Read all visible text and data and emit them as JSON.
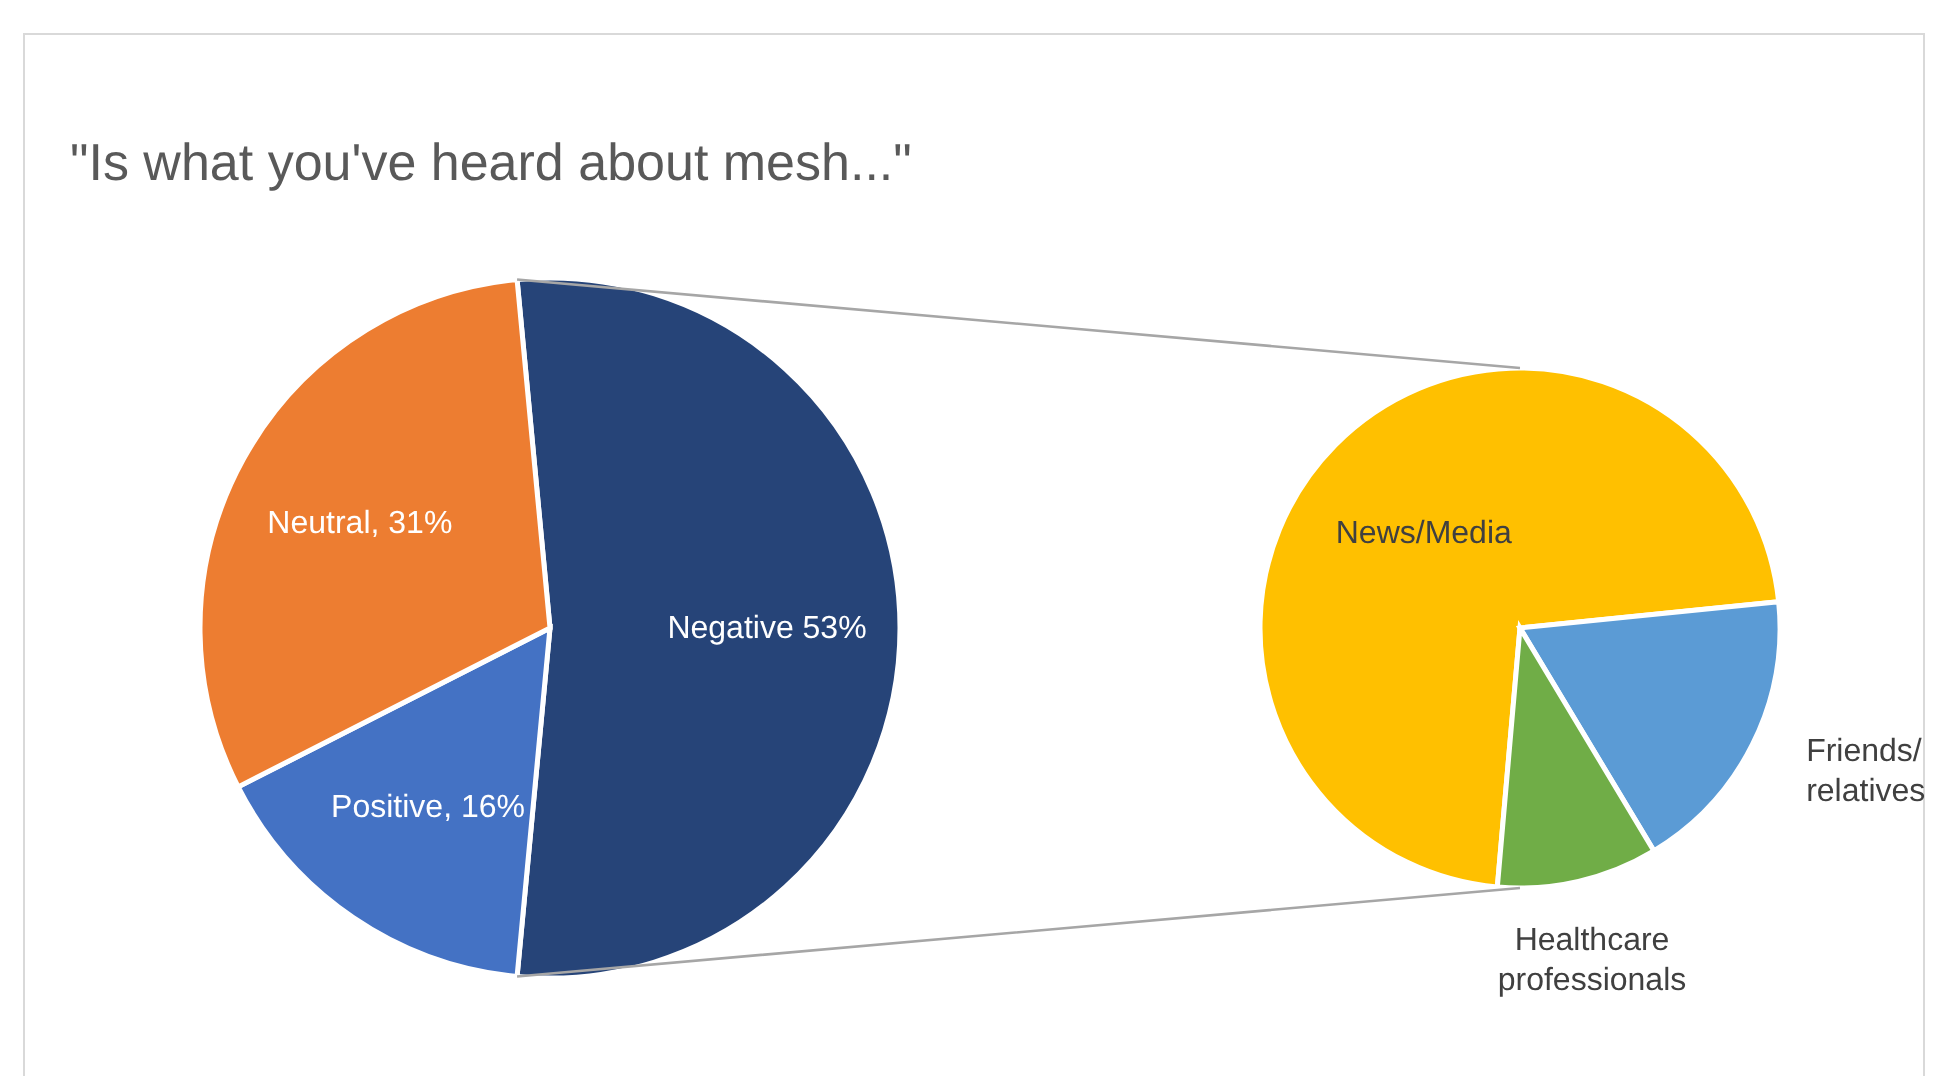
{
  "chart_data": [
    {
      "type": "pie",
      "title": "\"Is what you've heard about mesh...\"",
      "categories": [
        "Negative",
        "Positive",
        "Neutral"
      ],
      "values": [
        53,
        16,
        31
      ],
      "colors": [
        "#264478",
        "#4472c4",
        "#ed7d31"
      ],
      "value_labels": [
        "53%",
        "16%",
        "31%"
      ]
    },
    {
      "type": "pie",
      "categories": [
        "News/Media",
        "Friends/ relatives",
        "Healthcare professionals"
      ],
      "values": [
        72,
        18,
        10
      ],
      "colors": [
        "#ffc000",
        "#5b9bd5",
        "#70ad47"
      ]
    }
  ]
}
